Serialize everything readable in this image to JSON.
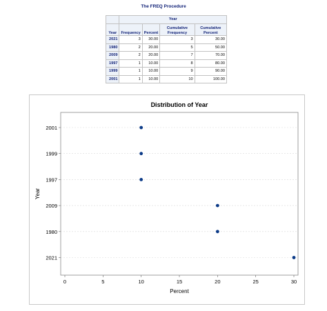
{
  "page_title": "The FREQ Procedure",
  "table": {
    "spanner": "Year",
    "headers": {
      "row": "Year",
      "frequency": "Frequency",
      "percent": "Percent",
      "cum_frequency": "Cumulative Frequency",
      "cum_percent": "Cumulative Percent"
    },
    "rows": [
      {
        "year": "2021",
        "frequency": "3",
        "percent": "30.00",
        "cum_frequency": "3",
        "cum_percent": "30.00"
      },
      {
        "year": "1980",
        "frequency": "2",
        "percent": "20.00",
        "cum_frequency": "5",
        "cum_percent": "50.00"
      },
      {
        "year": "2009",
        "frequency": "2",
        "percent": "20.00",
        "cum_frequency": "7",
        "cum_percent": "70.00"
      },
      {
        "year": "1997",
        "frequency": "1",
        "percent": "10.00",
        "cum_frequency": "8",
        "cum_percent": "80.00"
      },
      {
        "year": "1999",
        "frequency": "1",
        "percent": "10.00",
        "cum_frequency": "9",
        "cum_percent": "90.00"
      },
      {
        "year": "2001",
        "frequency": "1",
        "percent": "10.00",
        "cum_frequency": "10",
        "cum_percent": "100.00"
      }
    ]
  },
  "colors": {
    "header_text": "#112277",
    "header_bg": "#edf2f9",
    "marker": "#0b3a87",
    "grid": "#d9d9d9"
  },
  "chart_data": {
    "type": "scatter",
    "title": "Distribution of Year",
    "xlabel": "Percent",
    "ylabel": "Year",
    "xlim": [
      0,
      30
    ],
    "x_ticks": [
      0,
      5,
      10,
      15,
      20,
      25,
      30
    ],
    "categories": [
      "2021",
      "1980",
      "2009",
      "1997",
      "1999",
      "2001"
    ],
    "points": [
      {
        "category": "2021",
        "x": 30
      },
      {
        "category": "1980",
        "x": 20
      },
      {
        "category": "2009",
        "x": 20
      },
      {
        "category": "1997",
        "x": 10
      },
      {
        "category": "1999",
        "x": 10
      },
      {
        "category": "2001",
        "x": 10
      }
    ],
    "grid": "horizontal dashed"
  }
}
